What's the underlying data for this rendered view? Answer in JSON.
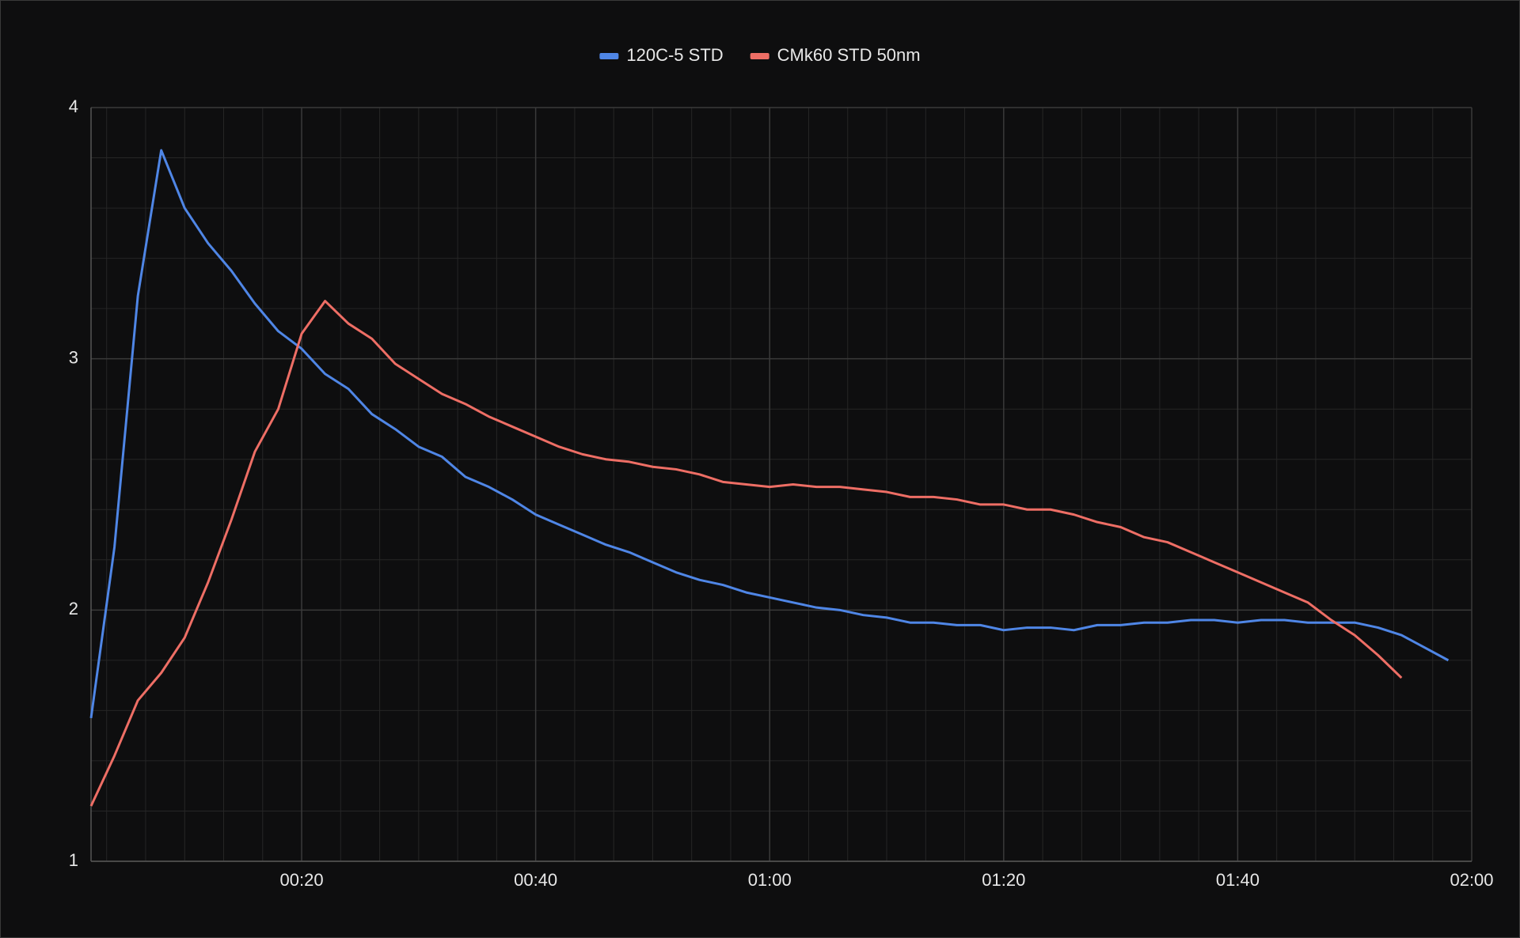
{
  "chart_data": {
    "type": "line",
    "x": [
      2,
      4,
      6,
      8,
      10,
      12,
      14,
      16,
      18,
      20,
      22,
      24,
      26,
      28,
      30,
      32,
      34,
      36,
      38,
      40,
      42,
      44,
      46,
      48,
      50,
      52,
      54,
      56,
      58,
      60,
      62,
      64,
      66,
      68,
      70,
      72,
      74,
      76,
      78,
      80,
      82,
      84,
      86,
      88,
      90,
      92,
      94,
      96,
      98,
      100,
      102,
      104,
      106,
      108,
      110,
      112,
      114,
      116,
      118
    ],
    "series": [
      {
        "name": "120C-5 STD",
        "color": "#4f86e6",
        "values": [
          1.57,
          2.25,
          3.25,
          3.83,
          3.6,
          3.46,
          3.35,
          3.22,
          3.11,
          3.04,
          2.94,
          2.88,
          2.78,
          2.72,
          2.65,
          2.61,
          2.53,
          2.49,
          2.44,
          2.38,
          2.34,
          2.3,
          2.26,
          2.23,
          2.19,
          2.15,
          2.12,
          2.1,
          2.07,
          2.05,
          2.03,
          2.01,
          2.0,
          1.98,
          1.97,
          1.95,
          1.95,
          1.94,
          1.94,
          1.92,
          1.93,
          1.93,
          1.92,
          1.94,
          1.94,
          1.95,
          1.95,
          1.96,
          1.96,
          1.95,
          1.96,
          1.96,
          1.95,
          1.95,
          1.95,
          1.93,
          1.9,
          1.85,
          1.8
        ]
      },
      {
        "name": "CMk60 STD 50nm",
        "color": "#ee6e65",
        "values": [
          1.22,
          1.42,
          1.64,
          1.75,
          1.89,
          2.11,
          2.36,
          2.63,
          2.8,
          3.1,
          3.23,
          3.14,
          3.08,
          2.98,
          2.92,
          2.86,
          2.82,
          2.77,
          2.73,
          2.69,
          2.65,
          2.62,
          2.6,
          2.59,
          2.57,
          2.56,
          2.54,
          2.51,
          2.5,
          2.49,
          2.5,
          2.49,
          2.49,
          2.48,
          2.47,
          2.45,
          2.45,
          2.44,
          2.42,
          2.42,
          2.4,
          2.4,
          2.38,
          2.35,
          2.33,
          2.29,
          2.27,
          2.23,
          2.19,
          2.15,
          2.11,
          2.07,
          2.03,
          1.96,
          1.9,
          1.82,
          1.73,
          null,
          null
        ]
      }
    ],
    "xlim": [
      2,
      120
    ],
    "xticks": [
      {
        "value": 20,
        "label": "00:20"
      },
      {
        "value": 40,
        "label": "00:40"
      },
      {
        "value": 60,
        "label": "01:00"
      },
      {
        "value": 80,
        "label": "01:20"
      },
      {
        "value": 100,
        "label": "01:40"
      },
      {
        "value": 120,
        "label": "02:00"
      }
    ],
    "ylim": [
      1,
      4
    ],
    "yticks": [
      1,
      2,
      3,
      4
    ],
    "grid": true
  }
}
